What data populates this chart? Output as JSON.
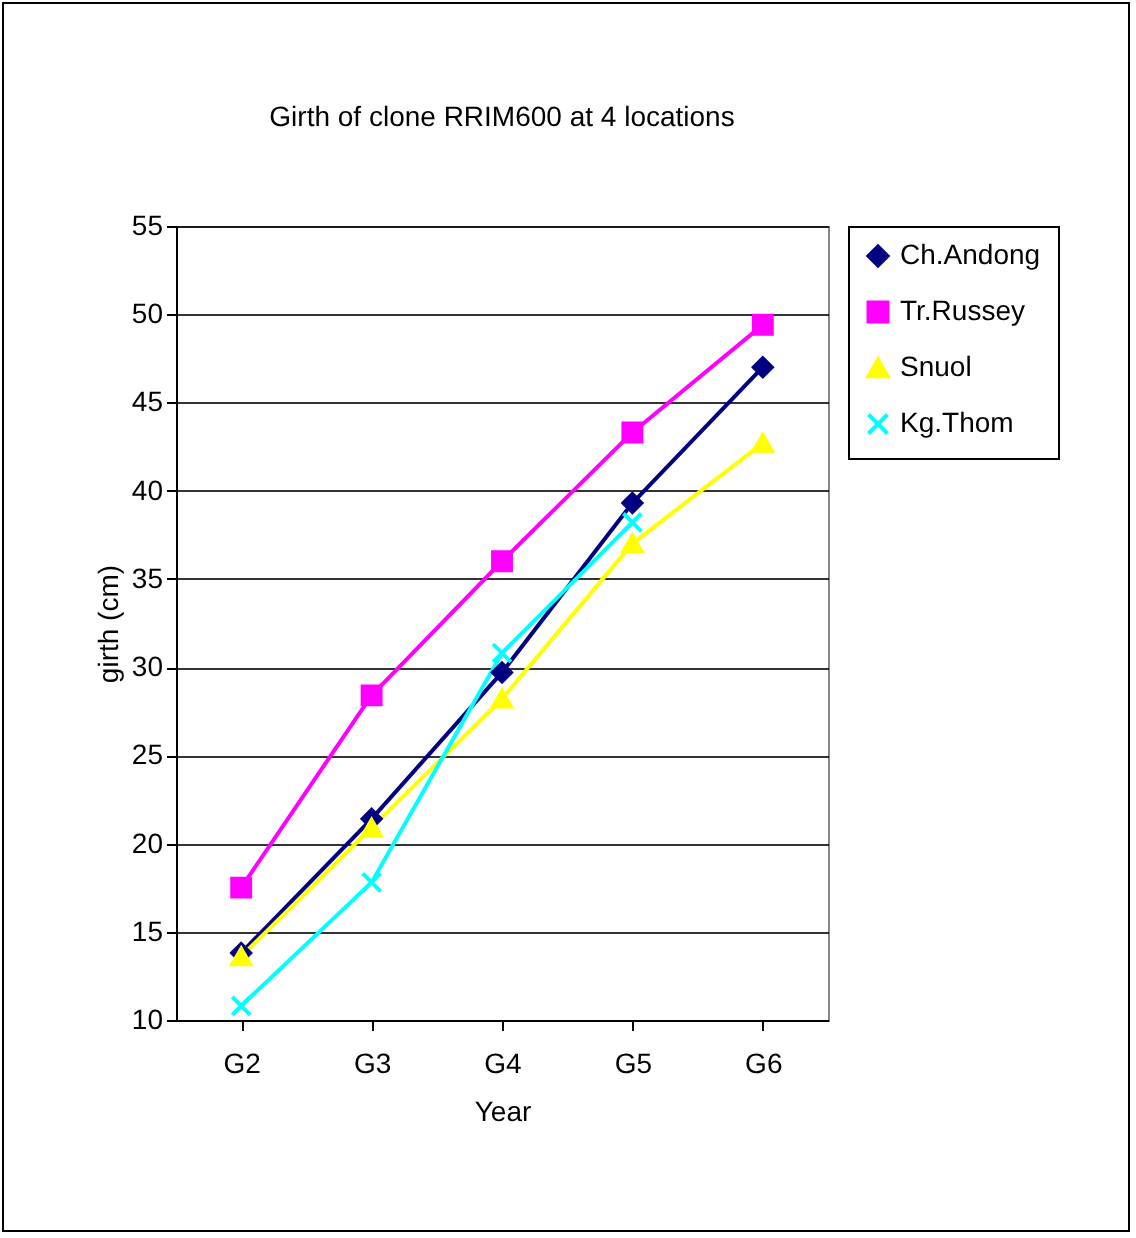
{
  "chart_data": {
    "type": "line",
    "title": "Girth of clone RRIM600 at 4 locations",
    "xlabel": "Year",
    "ylabel": "girth (cm)",
    "categories": [
      "G2",
      "G3",
      "G4",
      "G5",
      "G6"
    ],
    "series": [
      {
        "name": "Ch.Andong",
        "color": "#000080",
        "marker": "diamond",
        "values": [
          13.8,
          21.4,
          29.7,
          39.3,
          47.0
        ]
      },
      {
        "name": "Tr.Russey",
        "color": "#ff00ff",
        "marker": "square",
        "values": [
          17.5,
          28.4,
          36.0,
          43.3,
          49.4
        ]
      },
      {
        "name": "Snuol",
        "color": "#ffff00",
        "marker": "triangle",
        "values": [
          13.6,
          20.9,
          28.2,
          37.0,
          42.7
        ]
      },
      {
        "name": "Kg.Thom",
        "color": "#00ffff",
        "marker": "cross",
        "values": [
          10.8,
          17.8,
          30.8,
          38.2,
          null
        ]
      }
    ],
    "ylim": [
      10,
      55
    ],
    "yticks": [
      10,
      15,
      20,
      25,
      30,
      35,
      40,
      45,
      50,
      55
    ],
    "grid": "y",
    "legend": "right"
  }
}
